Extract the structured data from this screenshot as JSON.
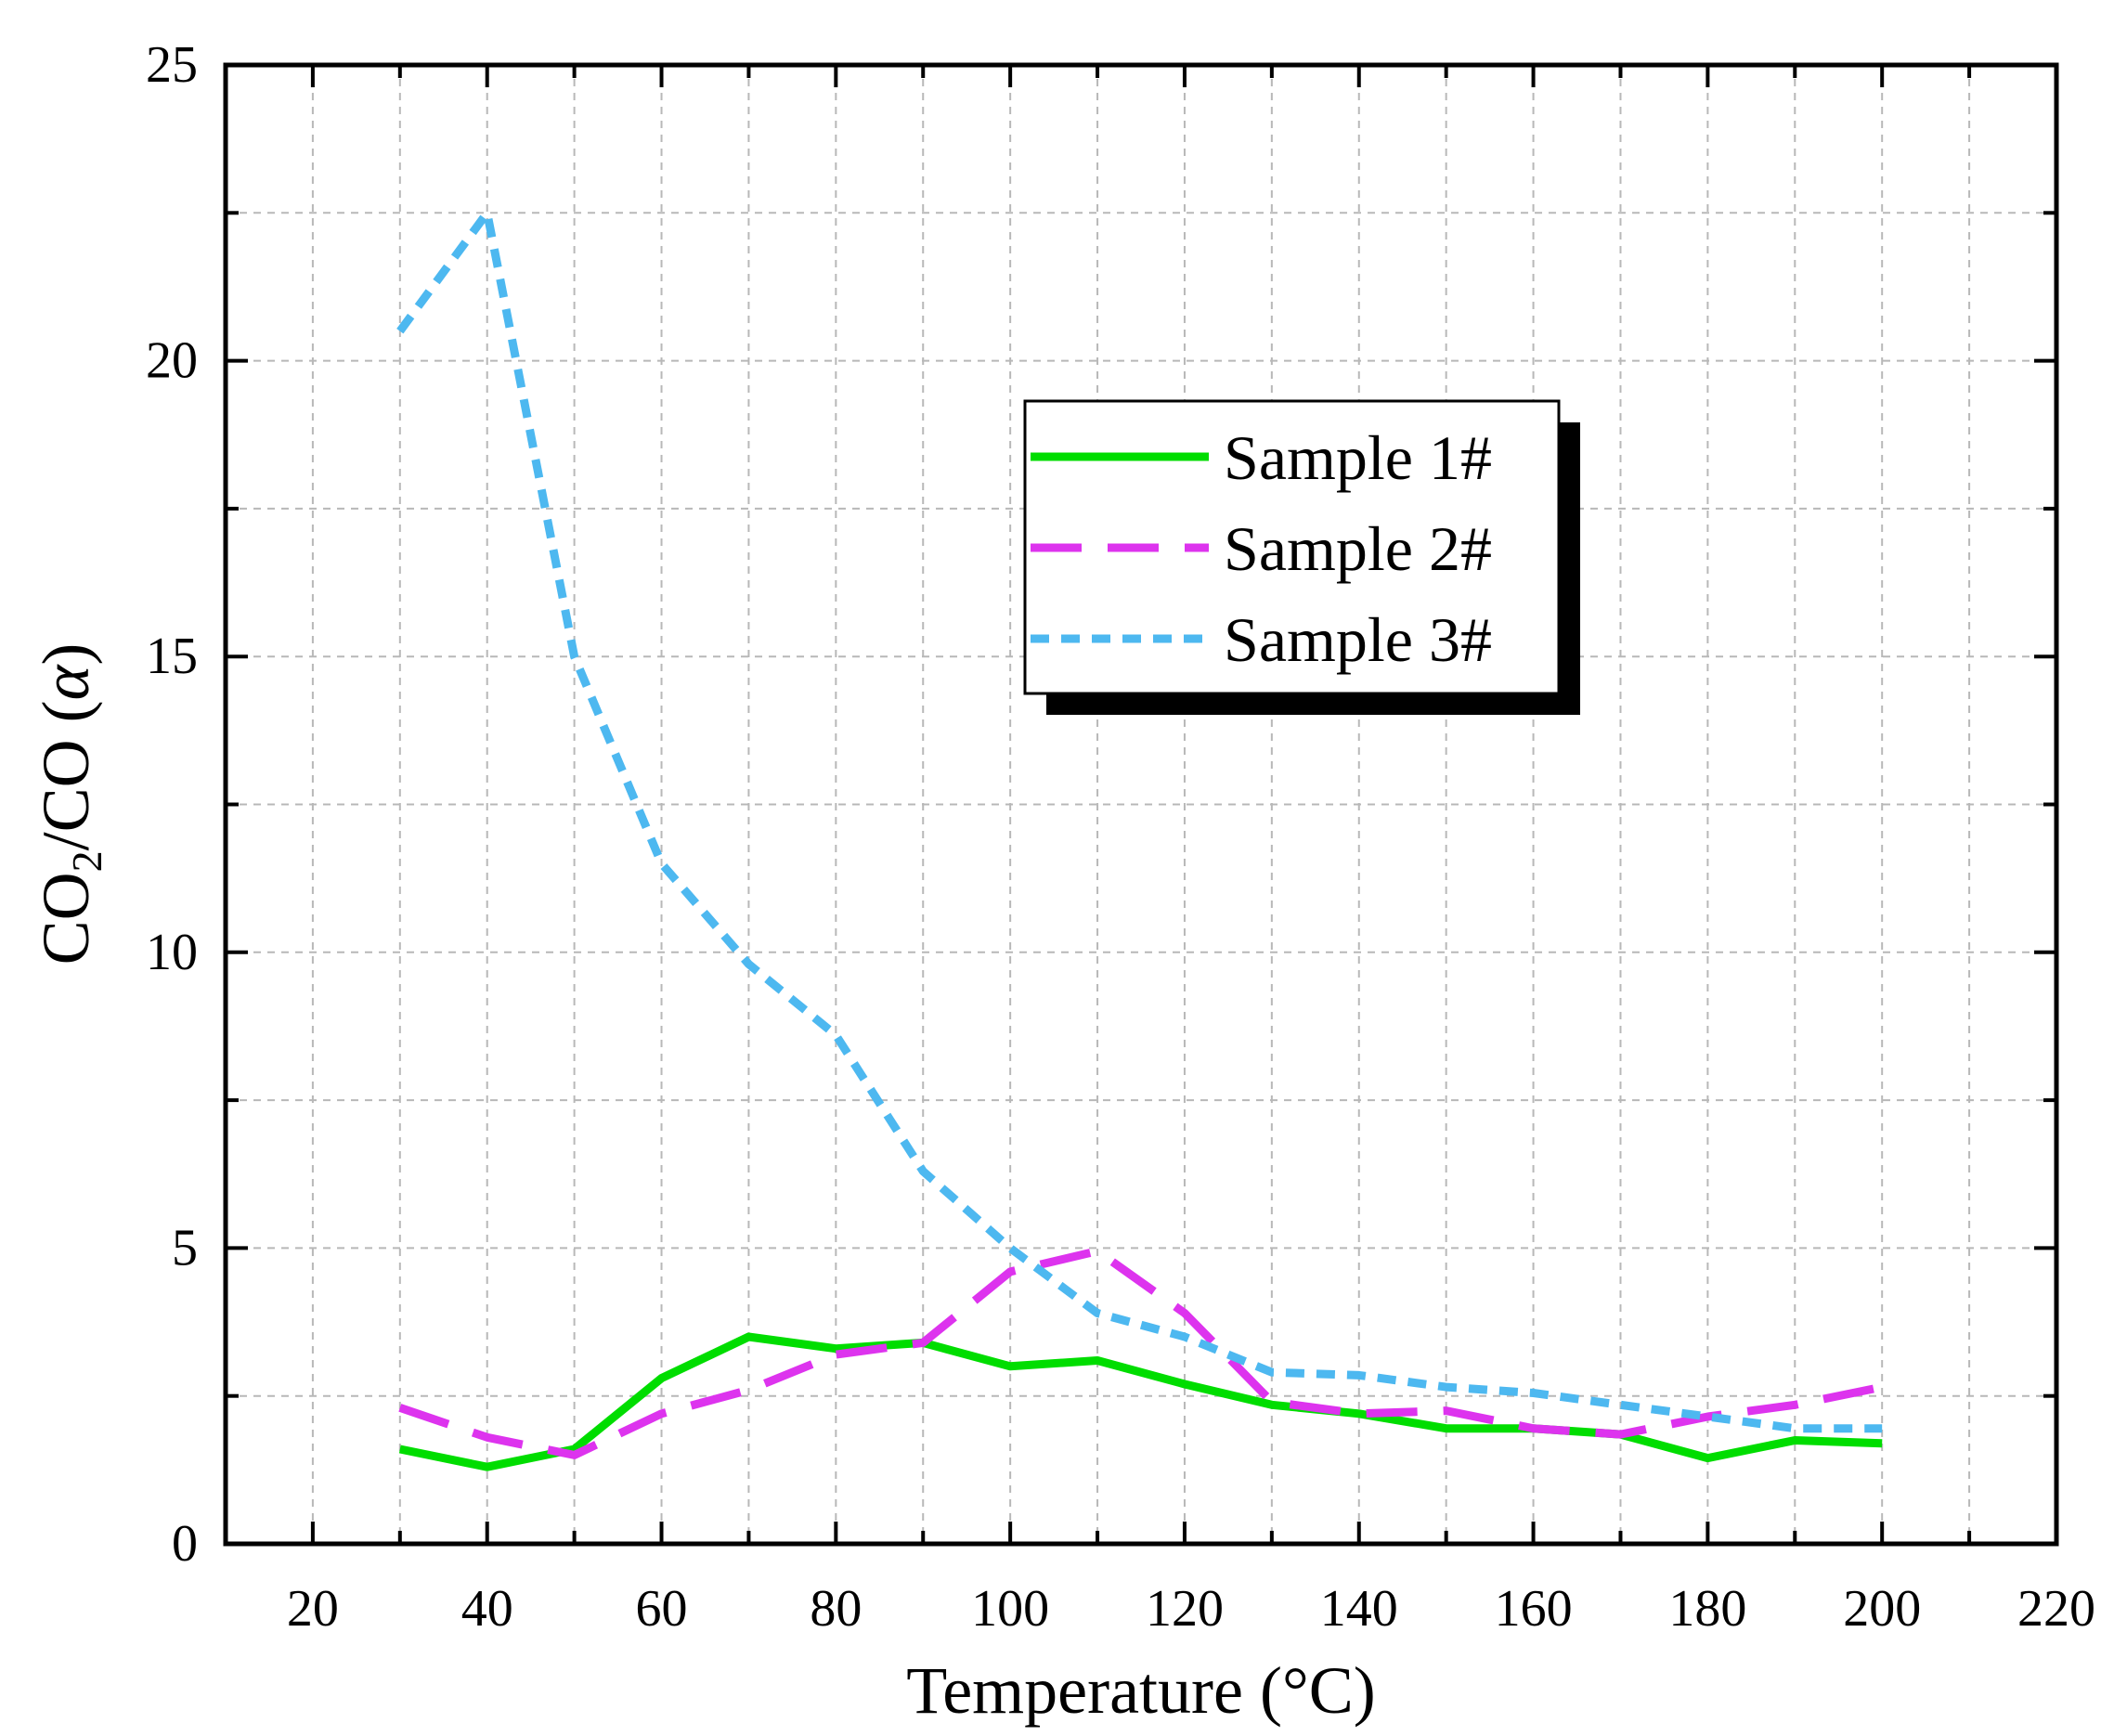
{
  "chart_data": {
    "type": "line",
    "title": "",
    "xlabel": "Temperature (°C)",
    "ylabel": {
      "prefix": "CO",
      "subscript": "2",
      "middle": "/CO (",
      "symbol": "α",
      "suffix": ")"
    },
    "xlim": [
      10,
      220
    ],
    "ylim": [
      0,
      25
    ],
    "xticks": [
      20,
      40,
      60,
      80,
      100,
      120,
      140,
      160,
      180,
      200,
      220
    ],
    "yticks": [
      0,
      5,
      10,
      15,
      20,
      25
    ],
    "grid": true,
    "legend_position": "upper-middle",
    "x": [
      30,
      40,
      50,
      60,
      70,
      80,
      90,
      100,
      110,
      120,
      130,
      140,
      150,
      160,
      170,
      180,
      190,
      200
    ],
    "series": [
      {
        "name": "Sample 1#",
        "color": "#00dd00",
        "style": "solid",
        "values": [
          1.6,
          1.3,
          1.6,
          2.8,
          3.5,
          3.3,
          3.4,
          3.0,
          3.1,
          2.7,
          2.35,
          2.2,
          1.95,
          1.95,
          1.85,
          1.45,
          1.75,
          1.7
        ]
      },
      {
        "name": "Sample 2#",
        "color": "#dd33ee",
        "style": "dashed",
        "values": [
          2.3,
          1.8,
          1.5,
          2.2,
          2.6,
          3.2,
          3.4,
          4.6,
          4.95,
          3.9,
          2.4,
          2.2,
          2.25,
          1.95,
          1.85,
          2.15,
          2.35,
          2.65
        ]
      },
      {
        "name": "Sample 3#",
        "color": "#4db8f0",
        "style": "dotted",
        "values": [
          20.5,
          22.5,
          15.0,
          11.5,
          9.8,
          8.6,
          6.3,
          5.0,
          3.9,
          3.5,
          2.9,
          2.85,
          2.65,
          2.55,
          2.35,
          2.15,
          1.95,
          1.95
        ]
      }
    ]
  }
}
